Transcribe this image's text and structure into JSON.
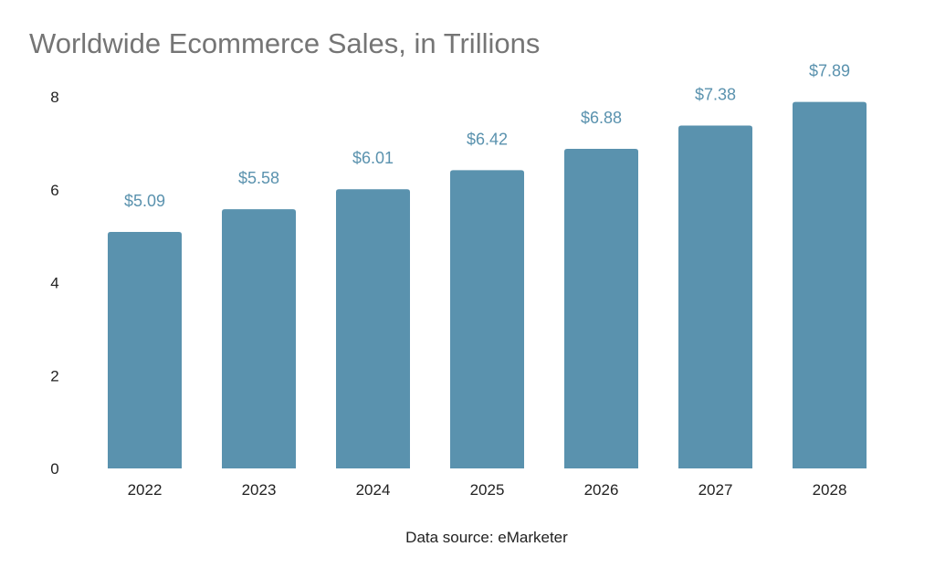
{
  "chart_data": {
    "type": "bar",
    "title": "Worldwide Ecommerce Sales, in Trillions",
    "source": "Data source: eMarketer",
    "categories": [
      "2022",
      "2023",
      "2024",
      "2025",
      "2026",
      "2027",
      "2028"
    ],
    "values": [
      5.09,
      5.58,
      6.01,
      6.42,
      6.88,
      7.38,
      7.89
    ],
    "data_labels": [
      "$5.09",
      "$5.58",
      "$6.01",
      "$6.42",
      "$6.88",
      "$7.38",
      "$7.89"
    ],
    "yticks": [
      "0",
      "2",
      "4",
      "6",
      "8"
    ],
    "ylim": [
      0,
      8
    ],
    "xlabel": "",
    "ylabel": "",
    "grid": false,
    "legend": "none",
    "bar_color": "#5a92ae",
    "label_color": "#5a92ae"
  }
}
